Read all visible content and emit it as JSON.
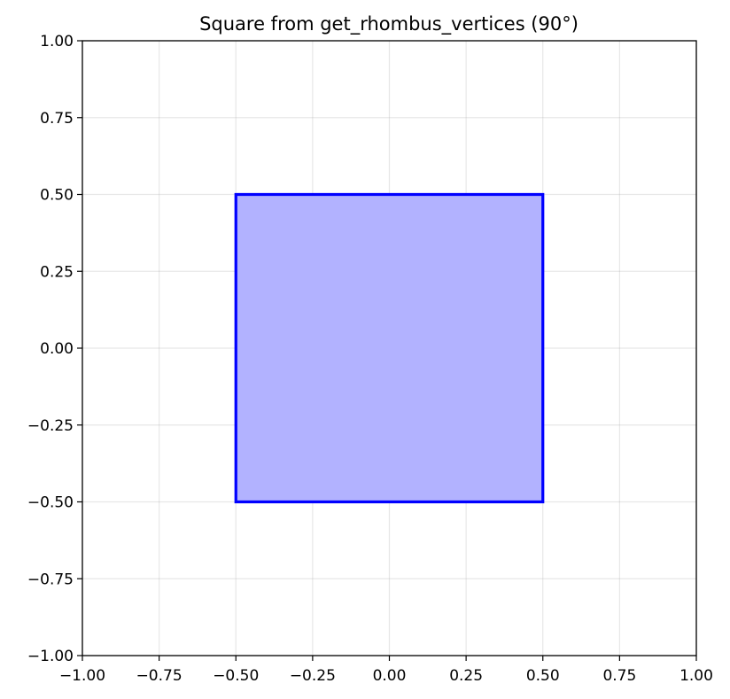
{
  "chart_data": {
    "type": "area",
    "title": "Square from get_rhombus_vertices (90°)",
    "xlabel": "",
    "ylabel": "",
    "xlim": [
      -1.0,
      1.0
    ],
    "ylim": [
      -1.0,
      1.0
    ],
    "grid": true,
    "x_ticks": [
      -1.0,
      -0.75,
      -0.5,
      -0.25,
      0.0,
      0.25,
      0.5,
      0.75,
      1.0
    ],
    "y_ticks": [
      -1.0,
      -0.75,
      -0.5,
      -0.25,
      0.0,
      0.25,
      0.5,
      0.75,
      1.0
    ],
    "x_tick_labels": [
      "−1.00",
      "−0.75",
      "−0.50",
      "−0.25",
      "0.00",
      "0.25",
      "0.50",
      "0.75",
      "1.00"
    ],
    "y_tick_labels": [
      "−1.00",
      "−0.75",
      "−0.50",
      "−0.25",
      "0.00",
      "0.25",
      "0.50",
      "0.75",
      "1.00"
    ],
    "series": [
      {
        "vertices": [
          [
            -0.5,
            -0.5
          ],
          [
            0.5,
            -0.5
          ],
          [
            0.5,
            0.5
          ],
          [
            -0.5,
            0.5
          ]
        ],
        "edge_color": "#0000ff",
        "fill_color": "#b2b2ff"
      }
    ]
  }
}
